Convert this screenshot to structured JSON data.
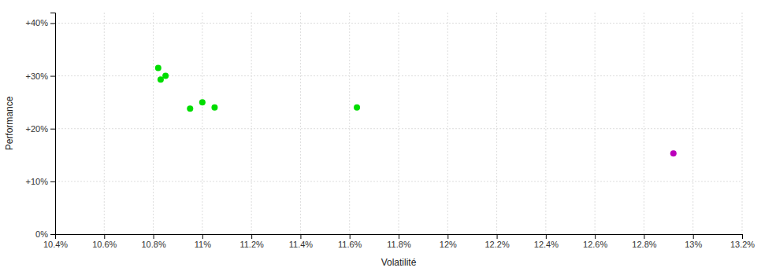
{
  "chart_data": {
    "type": "scatter",
    "xlabel": "Volatilité",
    "ylabel": "Performance",
    "xlim": [
      0.104,
      0.132
    ],
    "ylim": [
      0.0,
      0.42
    ],
    "xticks": [
      {
        "value": 0.104,
        "label": "10.4%"
      },
      {
        "value": 0.106,
        "label": "10.6%"
      },
      {
        "value": 0.108,
        "label": "10.8%"
      },
      {
        "value": 0.11,
        "label": "11%"
      },
      {
        "value": 0.112,
        "label": "11.2%"
      },
      {
        "value": 0.114,
        "label": "11.4%"
      },
      {
        "value": 0.116,
        "label": "11.6%"
      },
      {
        "value": 0.118,
        "label": "11.8%"
      },
      {
        "value": 0.12,
        "label": "12%"
      },
      {
        "value": 0.122,
        "label": "12.2%"
      },
      {
        "value": 0.124,
        "label": "12.4%"
      },
      {
        "value": 0.126,
        "label": "12.6%"
      },
      {
        "value": 0.128,
        "label": "12.8%"
      },
      {
        "value": 0.13,
        "label": "13%"
      },
      {
        "value": 0.132,
        "label": "13.2%"
      }
    ],
    "yticks": [
      {
        "value": 0.0,
        "label": "0%"
      },
      {
        "value": 0.1,
        "label": "+10%"
      },
      {
        "value": 0.2,
        "label": "+20%"
      },
      {
        "value": 0.3,
        "label": "+30%"
      },
      {
        "value": 0.4,
        "label": "+40%"
      }
    ],
    "grid": true,
    "series": [
      {
        "color": "#00dd00",
        "x": [
          0.1082,
          0.1085,
          0.1083,
          0.1095,
          0.11,
          0.1105,
          0.1163
        ],
        "values": [
          0.315,
          0.3,
          0.293,
          0.238,
          0.25,
          0.24,
          0.24
        ]
      },
      {
        "color": "#bb00bb",
        "x": [
          0.1292
        ],
        "values": [
          0.153
        ]
      }
    ]
  }
}
